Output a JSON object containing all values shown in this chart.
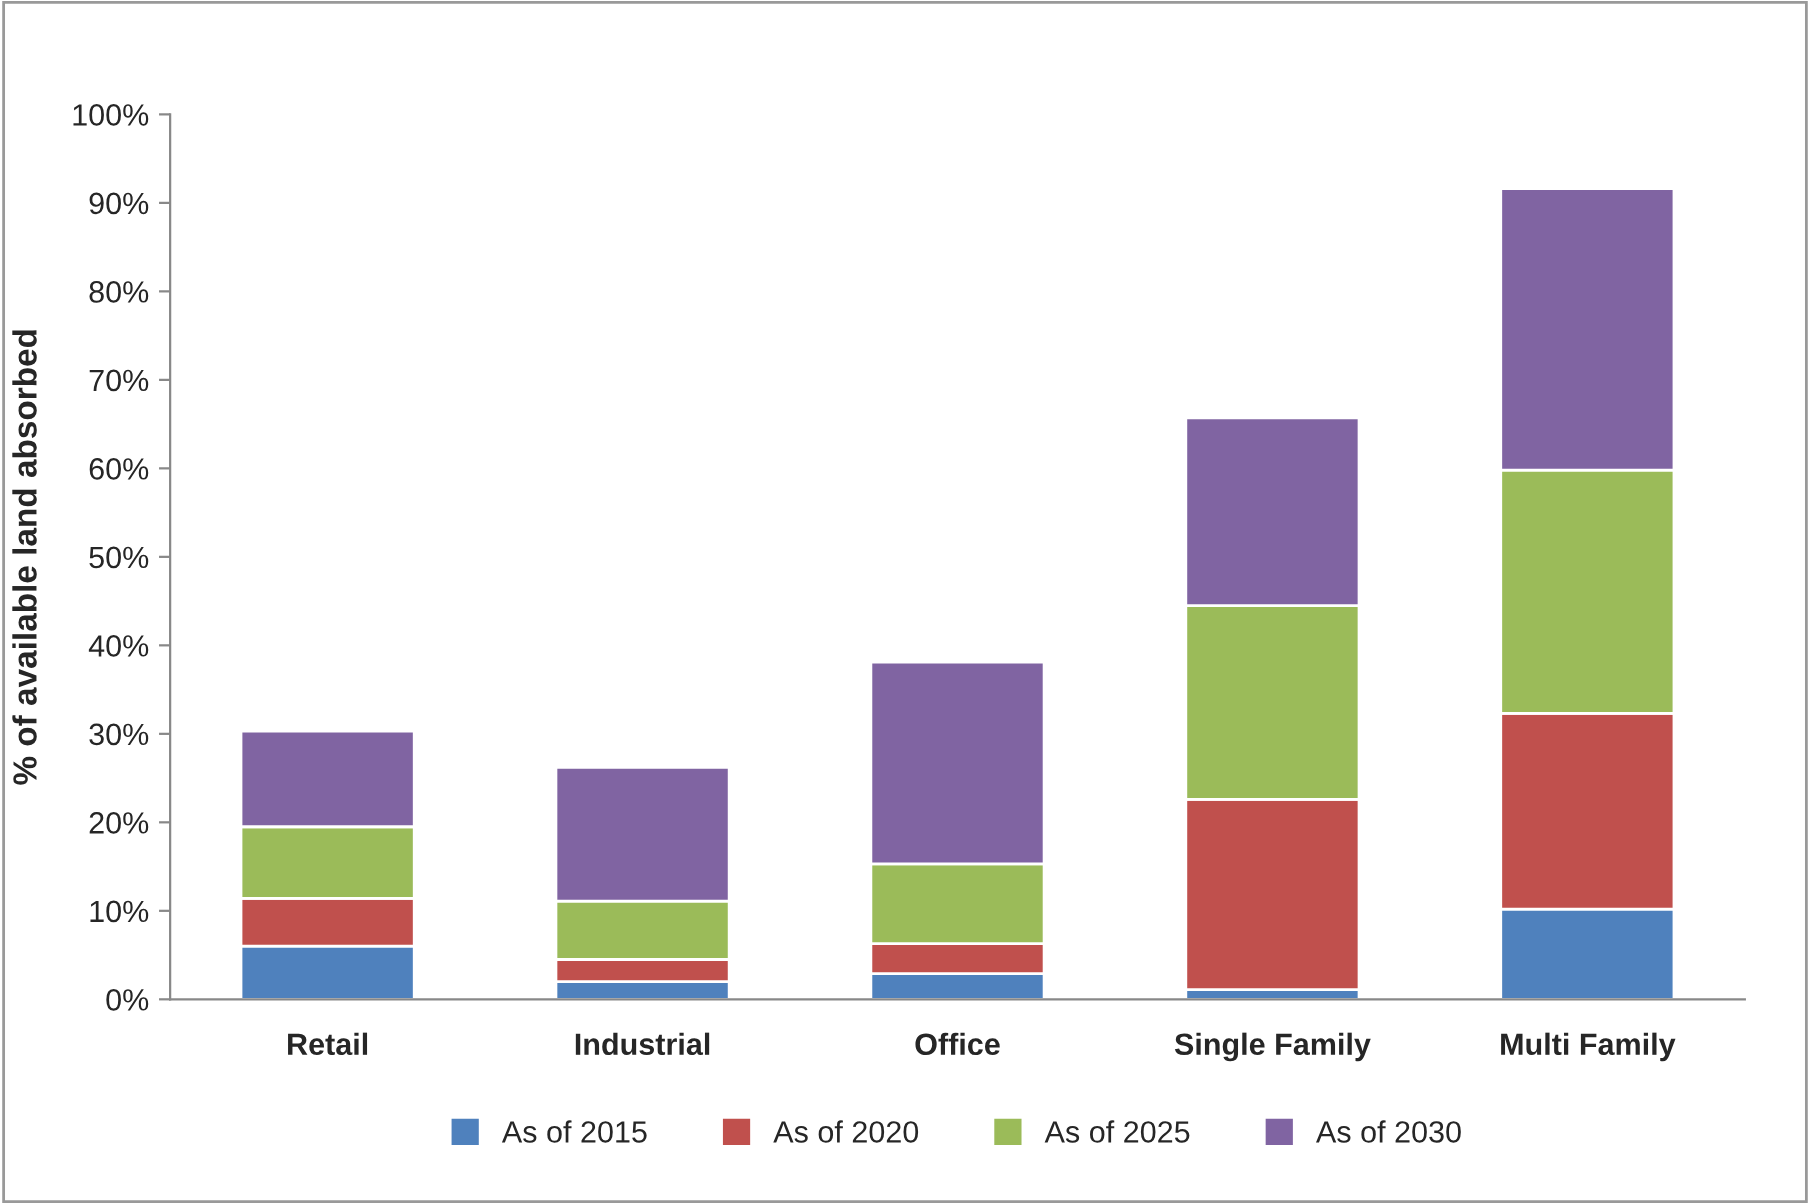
{
  "chart_data": {
    "type": "bar",
    "stacked": true,
    "ylabel": "% of available land absorbed",
    "categories": [
      "Retail",
      "Industrial",
      "Office",
      "Single Family",
      "Multi Family"
    ],
    "series": [
      {
        "name": "As of 2015",
        "color": "#4f81bd",
        "values": [
          6.0,
          2.0,
          2.9,
          1.1,
          10.2
        ]
      },
      {
        "name": "As of 2020",
        "color": "#c0504d",
        "values": [
          5.4,
          2.5,
          3.4,
          21.5,
          22.1
        ]
      },
      {
        "name": "As of 2025",
        "color": "#9bbb59",
        "values": [
          8.1,
          6.6,
          9.0,
          21.9,
          27.5
        ]
      },
      {
        "name": "As of 2030",
        "color": "#8064a2",
        "values": [
          10.8,
          15.1,
          22.8,
          21.2,
          31.8
        ]
      }
    ],
    "ylim": [
      0,
      100
    ],
    "yticks": [
      {
        "value": 0,
        "label": "0%"
      },
      {
        "value": 10,
        "label": "10%"
      },
      {
        "value": 20,
        "label": "20%"
      },
      {
        "value": 30,
        "label": "30%"
      },
      {
        "value": 40,
        "label": "40%"
      },
      {
        "value": 50,
        "label": "50%"
      },
      {
        "value": 60,
        "label": "60%"
      },
      {
        "value": 70,
        "label": "70%"
      },
      {
        "value": 80,
        "label": "80%"
      },
      {
        "value": 90,
        "label": "90%"
      },
      {
        "value": 100,
        "label": "100%"
      }
    ],
    "grid": false,
    "legend": "bottom"
  }
}
